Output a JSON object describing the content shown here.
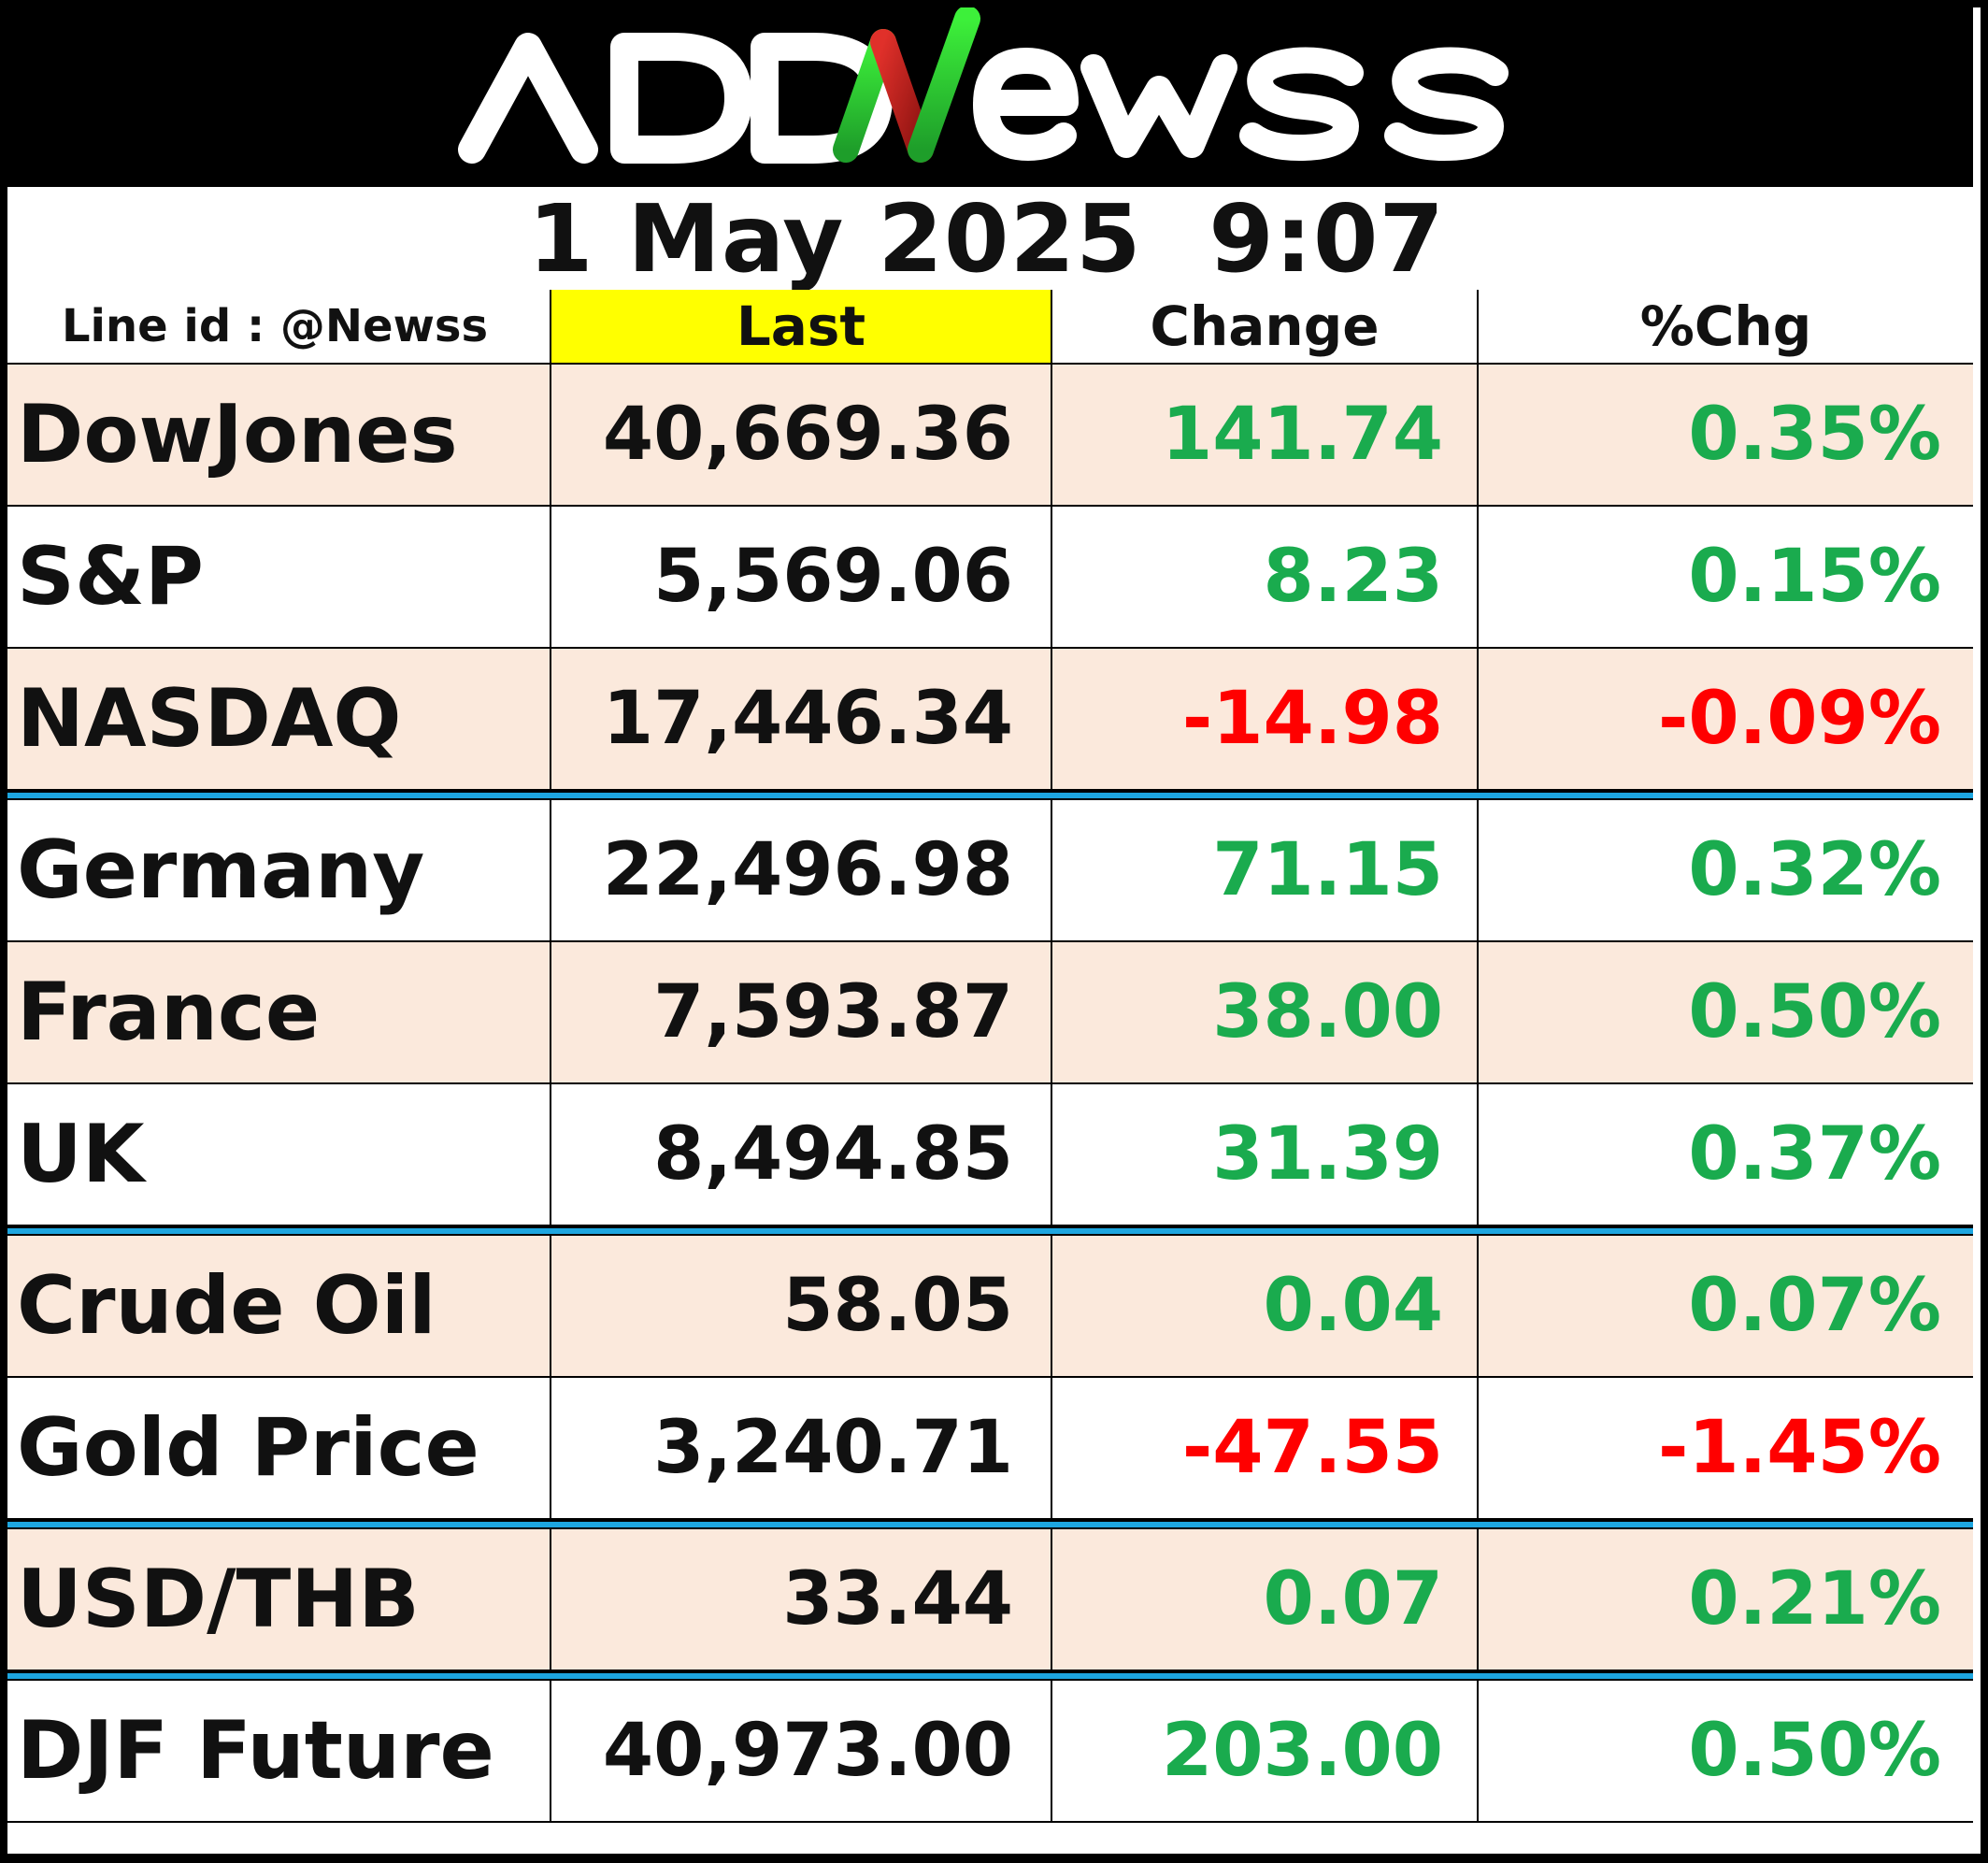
{
  "brand": {
    "name": "ADDNewss",
    "accent_green": "#22c02a",
    "accent_red": "#c0201c"
  },
  "date": "1 May 2025",
  "time": "9:07",
  "table": {
    "headers": {
      "line_id": "Line id : @Newss",
      "last": "Last",
      "change": "Change",
      "pct_change": "%Chg"
    },
    "rows": [
      {
        "name": "DowJones",
        "last": "40,669.36",
        "change": "141.74",
        "pct": "0.35%",
        "direction": "up"
      },
      {
        "name": "S&P",
        "last": "5,569.06",
        "change": "8.23",
        "pct": "0.15%",
        "direction": "up"
      },
      {
        "name": "NASDAQ",
        "last": "17,446.34",
        "change": "-14.98",
        "pct": "-0.09%",
        "direction": "down"
      },
      {
        "name": "Germany",
        "last": "22,496.98",
        "change": "71.15",
        "pct": "0.32%",
        "direction": "up"
      },
      {
        "name": "France",
        "last": "7,593.87",
        "change": "38.00",
        "pct": "0.50%",
        "direction": "up"
      },
      {
        "name": "UK",
        "last": "8,494.85",
        "change": "31.39",
        "pct": "0.37%",
        "direction": "up"
      },
      {
        "name": "Crude Oil",
        "last": "58.05",
        "change": "0.04",
        "pct": "0.07%",
        "direction": "up"
      },
      {
        "name": "Gold Price",
        "last": "3,240.71",
        "change": "-47.55",
        "pct": "-1.45%",
        "direction": "down"
      },
      {
        "name": "USD/THB",
        "last": "33.44",
        "change": "0.07",
        "pct": "0.21%",
        "direction": "up"
      },
      {
        "name": "DJF Future",
        "last": "40,973.00",
        "change": "203.00",
        "pct": "0.50%",
        "direction": "up"
      }
    ]
  },
  "colors": {
    "positive": "#1aab4e",
    "negative": "#ff0000",
    "header_highlight": "#ffff00",
    "row_shade": "#fbe9dc",
    "separator": "#1da6e0"
  }
}
